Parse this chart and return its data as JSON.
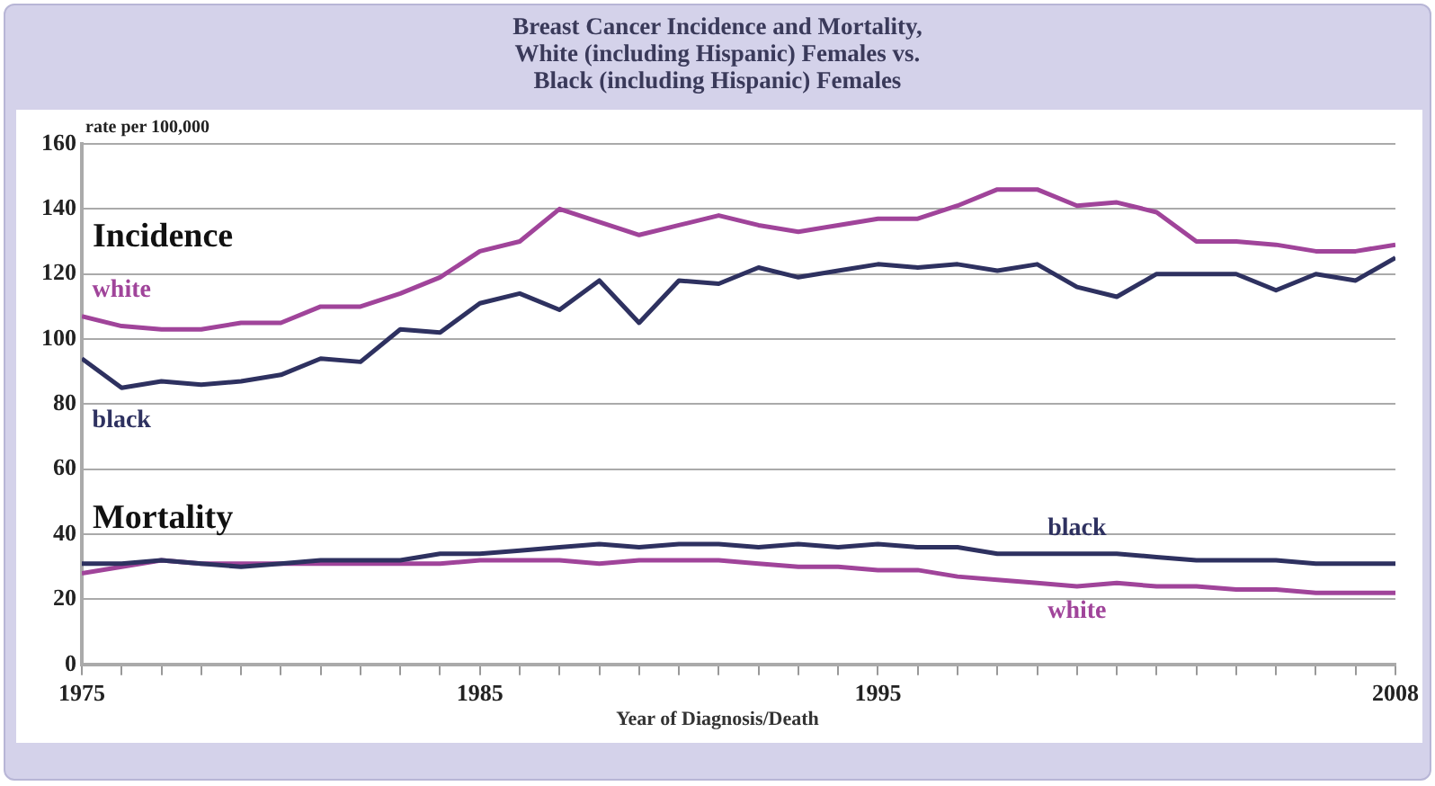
{
  "chart_data": {
    "type": "line",
    "title": "Breast Cancer Incidence and Mortality,\nWhite (including Hispanic) Females vs.\nBlack (including Hispanic) Females",
    "xlabel": "Year of Diagnosis/Death",
    "ylabel": "rate per 100,000",
    "x": [
      1975,
      1976,
      1977,
      1978,
      1979,
      1980,
      1981,
      1982,
      1983,
      1984,
      1985,
      1986,
      1987,
      1988,
      1989,
      1990,
      1991,
      1992,
      1993,
      1994,
      1995,
      1996,
      1997,
      1998,
      1999,
      2000,
      2001,
      2002,
      2003,
      2004,
      2005,
      2006,
      2007,
      2008
    ],
    "series": [
      {
        "name": "white",
        "color": "#a0449a",
        "values": [
          107,
          104,
          103,
          103,
          105,
          105,
          110,
          110,
          114,
          119,
          127,
          130,
          140,
          136,
          132,
          135,
          138,
          135,
          133,
          135,
          137,
          137,
          141,
          146,
          146,
          141,
          142,
          139,
          130,
          130,
          129,
          127,
          127,
          129
        ]
      },
      {
        "name": "black",
        "color": "#2e3160",
        "values": [
          94,
          85,
          87,
          86,
          87,
          89,
          94,
          93,
          103,
          102,
          111,
          114,
          109,
          118,
          105,
          118,
          117,
          122,
          119,
          121,
          123,
          122,
          123,
          121,
          123,
          116,
          113,
          120,
          120,
          120,
          115,
          120,
          118,
          125
        ]
      },
      {
        "name": "black",
        "color": "#2e3160",
        "values": [
          31,
          31,
          32,
          31,
          30,
          31,
          32,
          32,
          32,
          34,
          34,
          35,
          36,
          37,
          36,
          37,
          37,
          36,
          37,
          36,
          37,
          36,
          36,
          34,
          34,
          34,
          34,
          33,
          32,
          32,
          32,
          31,
          31,
          31
        ]
      },
      {
        "name": "white",
        "color": "#a0449a",
        "values": [
          28,
          30,
          32,
          31,
          31,
          31,
          31,
          31,
          31,
          31,
          32,
          32,
          32,
          31,
          32,
          32,
          32,
          31,
          30,
          30,
          29,
          29,
          27,
          26,
          25,
          24,
          25,
          24,
          24,
          23,
          23,
          22,
          22,
          22
        ]
      }
    ],
    "annotations": [
      "Incidence",
      "Mortality"
    ],
    "xlim": [
      1975,
      2008
    ],
    "xticks": [
      1975,
      {
        "value": 1976,
        "label": null
      },
      {
        "value": 1977,
        "label": null
      },
      {
        "value": 1978,
        "label": null
      },
      {
        "value": 1979,
        "label": null
      },
      {
        "value": 1980,
        "label": null
      },
      {
        "value": 1981,
        "label": null
      },
      {
        "value": 1982,
        "label": null
      },
      {
        "value": 1983,
        "label": null
      },
      {
        "value": 1984,
        "label": null
      },
      1985,
      {
        "value": 1986,
        "label": null
      },
      {
        "value": 1987,
        "label": null
      },
      {
        "value": 1988,
        "label": null
      },
      {
        "value": 1989,
        "label": null
      },
      {
        "value": 1990,
        "label": null
      },
      {
        "value": 1991,
        "label": null
      },
      {
        "value": 1992,
        "label": null
      },
      {
        "value": 1993,
        "label": null
      },
      {
        "value": 1994,
        "label": null
      },
      1995,
      {
        "value": 1996,
        "label": null
      },
      {
        "value": 1997,
        "label": null
      },
      {
        "value": 1998,
        "label": null
      },
      {
        "value": 1999,
        "label": null
      },
      {
        "value": 2000,
        "label": null
      },
      {
        "value": 2001,
        "label": null
      },
      {
        "value": 2002,
        "label": null
      },
      {
        "value": 2003,
        "label": null
      },
      {
        "value": 2004,
        "label": null
      },
      {
        "value": 2005,
        "label": null
      },
      {
        "value": 2006,
        "label": null
      },
      {
        "value": 2007,
        "label": null
      },
      2008
    ],
    "ylim": [
      0,
      160
    ],
    "yticks": [
      0,
      20,
      40,
      60,
      80,
      100,
      120,
      140,
      160
    ],
    "grid": "y",
    "legend": false,
    "marker": "none",
    "line_style": "solid"
  }
}
